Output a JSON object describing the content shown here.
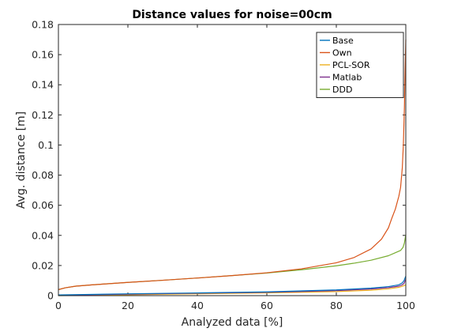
{
  "chart_data": {
    "type": "line",
    "title": "Distance values for noise=00cm",
    "xlabel": "Analyzed data [%]",
    "ylabel": "Avg. distance [m]",
    "xlim": [
      0,
      100
    ],
    "ylim": [
      0,
      0.18
    ],
    "xticks": [
      0,
      20,
      40,
      60,
      80,
      100
    ],
    "xtick_labels": [
      "0",
      "20",
      "40",
      "60",
      "80",
      "100"
    ],
    "yticks": [
      0,
      0.02,
      0.04,
      0.06,
      0.08,
      0.1,
      0.12,
      0.14,
      0.16,
      0.18
    ],
    "ytick_labels": [
      "0",
      "0.02",
      "0.04",
      "0.06",
      "0.08",
      "0.1",
      "0.12",
      "0.14",
      "0.16",
      "0.18"
    ],
    "grid": false,
    "legend_position": "top-right",
    "series": [
      {
        "name": "Base",
        "color": "#0072BD",
        "x": [
          0,
          20,
          40,
          60,
          80,
          90,
          95,
          98,
          99,
          99.5,
          100
        ],
        "y": [
          0.0005,
          0.0012,
          0.0018,
          0.0025,
          0.0038,
          0.005,
          0.006,
          0.0072,
          0.0085,
          0.01,
          0.013
        ]
      },
      {
        "name": "Own",
        "color": "#D95319",
        "x": [
          0,
          2,
          5,
          10,
          20,
          30,
          40,
          50,
          60,
          70,
          80,
          85,
          90,
          93,
          95,
          96,
          97,
          98,
          98.5,
          99,
          99.3,
          99.6,
          99.8,
          100
        ],
        "y": [
          0.004,
          0.0052,
          0.0063,
          0.0072,
          0.0088,
          0.0102,
          0.0117,
          0.0133,
          0.0152,
          0.0178,
          0.0218,
          0.0252,
          0.031,
          0.0375,
          0.045,
          0.0515,
          0.0575,
          0.066,
          0.0718,
          0.085,
          0.1,
          0.125,
          0.15,
          0.17
        ]
      },
      {
        "name": "PCL-SOR",
        "color": "#EDB120",
        "x": [
          0,
          20,
          40,
          60,
          80,
          90,
          95,
          98,
          99,
          100
        ],
        "y": [
          0.0,
          0.0006,
          0.0012,
          0.0018,
          0.0027,
          0.0036,
          0.0045,
          0.0055,
          0.0062,
          0.0072
        ]
      },
      {
        "name": "Matlab",
        "color": "#7E2F8E",
        "x": [
          0,
          20,
          40,
          60,
          80,
          90,
          95,
          98,
          99,
          99.5,
          100
        ],
        "y": [
          0.0003,
          0.001,
          0.0016,
          0.0022,
          0.0033,
          0.0044,
          0.0053,
          0.0063,
          0.0072,
          0.0082,
          0.011
        ]
      },
      {
        "name": "DDD",
        "color": "#77AC30",
        "x": [
          0,
          2,
          5,
          10,
          20,
          30,
          40,
          50,
          60,
          70,
          80,
          85,
          90,
          95,
          97,
          98.5,
          99.2,
          99.6,
          100
        ],
        "y": [
          0.004,
          0.0052,
          0.0063,
          0.0072,
          0.0088,
          0.0102,
          0.0117,
          0.0133,
          0.015,
          0.0172,
          0.0198,
          0.0215,
          0.0235,
          0.0265,
          0.0285,
          0.03,
          0.032,
          0.035,
          0.0405
        ]
      }
    ]
  }
}
